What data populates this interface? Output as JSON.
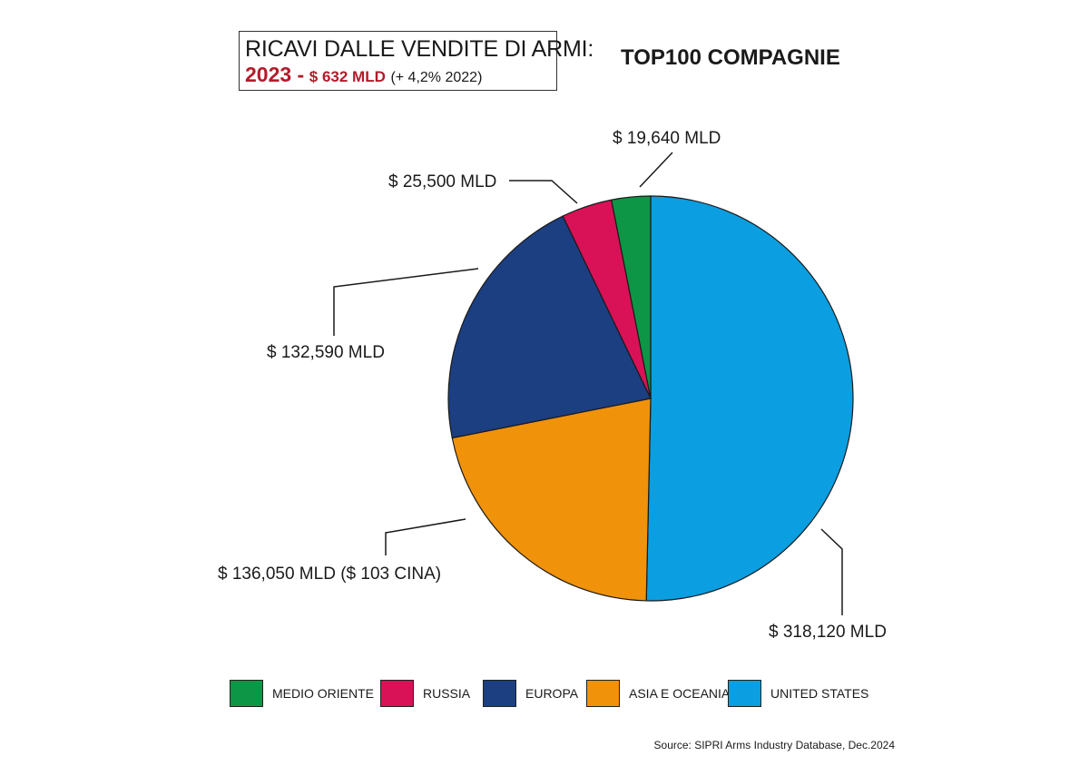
{
  "header": {
    "title_line1": "RICAVI DALLE VENDITE DI ARMI:",
    "year": "2023 -",
    "total": "$ 632 MLD",
    "change": "(+ 4,2% 2022)"
  },
  "page_title": "TOP100 COMPAGNIE",
  "source": "Source: SIPRI Arms Industry Database, Dec.2024",
  "chart_data": {
    "type": "pie",
    "title": "TOP100 COMPAGNIE",
    "unit": "$ MLD",
    "slices": [
      {
        "name": "UNITED STATES",
        "value": 318.12,
        "label": "$ 318,120 MLD",
        "color": "#0b9ee0"
      },
      {
        "name": "ASIA E OCEANIA",
        "value": 136.05,
        "label": "$ 136,050 MLD ($ 103 CINA)",
        "color": "#f0920a"
      },
      {
        "name": "EUROPA",
        "value": 132.59,
        "label": "$ 132,590 MLD",
        "color": "#1c3f82"
      },
      {
        "name": "RUSSIA",
        "value": 25.5,
        "label": "$ 25,500 MLD",
        "color": "#d91157"
      },
      {
        "name": "MEDIO ORIENTE",
        "value": 19.64,
        "label": "$ 19,640 MLD",
        "color": "#0d9646"
      }
    ],
    "legend": [
      "MEDIO ORIENTE",
      "RUSSIA",
      "EUROPA",
      "ASIA E OCEANIA",
      "UNITED STATES"
    ],
    "legend_position": "bottom"
  }
}
